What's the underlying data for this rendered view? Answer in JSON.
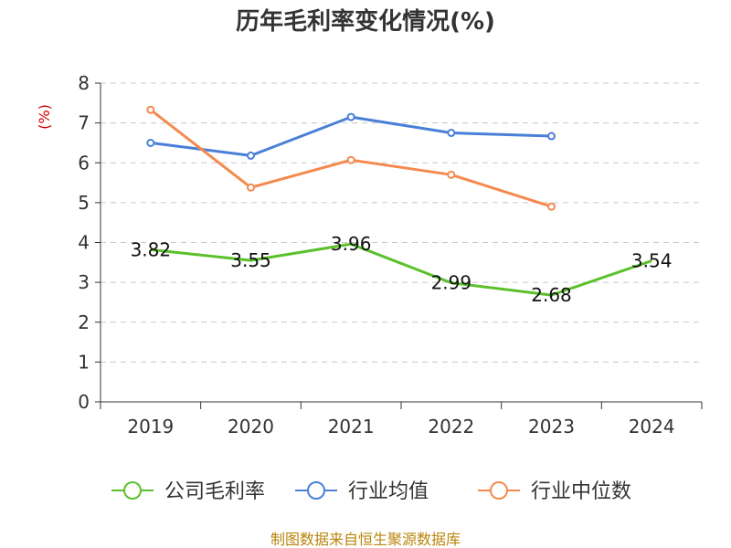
{
  "chart_data": {
    "type": "line",
    "title": "历年毛利率变化情况(%)",
    "ylabel": "(%)",
    "xlabel": "",
    "categories": [
      "2019",
      "2020",
      "2021",
      "2022",
      "2023",
      "2024"
    ],
    "ylim": [
      0,
      8
    ],
    "yticks": [
      "0",
      "1",
      "2",
      "3",
      "4",
      "5",
      "6",
      "7",
      "8"
    ],
    "grid": true,
    "legend_position": "bottom",
    "series": [
      {
        "name": "公司毛利率",
        "color": "#5cc02b",
        "values": [
          3.82,
          3.55,
          3.96,
          2.99,
          2.68,
          3.54
        ],
        "labels": [
          "3.82",
          "3.55",
          "3.96",
          "2.99",
          "2.68",
          "3.54"
        ],
        "show_markers": false
      },
      {
        "name": "行业均值",
        "color": "#4a7fd8",
        "values": [
          6.5,
          6.18,
          7.15,
          6.75,
          6.67,
          null
        ],
        "show_markers": true
      },
      {
        "name": "行业中位数",
        "color": "#f5894e",
        "values": [
          7.33,
          5.38,
          6.07,
          5.7,
          4.9,
          null
        ],
        "show_markers": true
      }
    ]
  },
  "source": "制图数据来自恒生聚源数据库",
  "ylabel_color": "#cc0000",
  "source_color": "#b8860b"
}
